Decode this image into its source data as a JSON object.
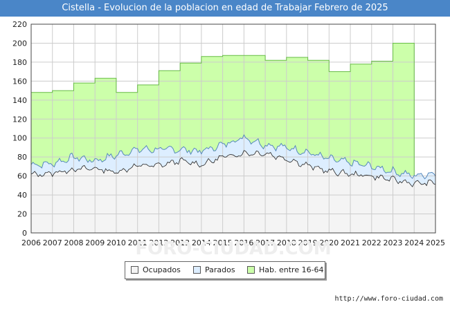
{
  "chart_data": {
    "type": "area",
    "title": "Cistella - Evolucion de la poblacion en edad de Trabajar Febrero de 2025",
    "xlabel": "",
    "ylabel": "",
    "xlim": [
      2006,
      2025
    ],
    "ylim": [
      0,
      220
    ],
    "x_ticks": [
      "2006",
      "2007",
      "2008",
      "2009",
      "2010",
      "2011",
      "2012",
      "2013",
      "2014",
      "2015",
      "2016",
      "2017",
      "2018",
      "2019",
      "2020",
      "2021",
      "2022",
      "2023",
      "2024",
      "2025"
    ],
    "y_ticks": [
      0,
      20,
      40,
      60,
      80,
      100,
      120,
      140,
      160,
      180,
      200,
      220
    ],
    "grid": true,
    "legend": [
      "Ocupados",
      "Parados",
      "Hab. entre 16-64"
    ],
    "series": [
      {
        "name": "Hab. entre 16-64",
        "color": "#ccffaa",
        "stroke": "#66bb44",
        "step_points": [
          [
            2006,
            148
          ],
          [
            2007,
            150
          ],
          [
            2008,
            158
          ],
          [
            2009,
            163
          ],
          [
            2010,
            148
          ],
          [
            2011,
            156
          ],
          [
            2012,
            171
          ],
          [
            2013,
            179
          ],
          [
            2014,
            186
          ],
          [
            2015,
            187
          ],
          [
            2016,
            187
          ],
          [
            2017,
            182
          ],
          [
            2018,
            185
          ],
          [
            2019,
            182
          ],
          [
            2020,
            170
          ],
          [
            2021,
            178
          ],
          [
            2022,
            181
          ],
          [
            2023,
            200
          ]
        ],
        "end_x": 2024.0
      },
      {
        "name": "Parados",
        "color": "#ddeeff",
        "stroke": "#5588bb",
        "annual_points": [
          [
            2006,
            72
          ],
          [
            2007,
            73
          ],
          [
            2008,
            80
          ],
          [
            2009,
            76
          ],
          [
            2010,
            82
          ],
          [
            2011,
            88
          ],
          [
            2012,
            88
          ],
          [
            2013,
            88
          ],
          [
            2014,
            86
          ],
          [
            2015,
            93
          ],
          [
            2016,
            101
          ],
          [
            2017,
            93
          ],
          [
            2018,
            90
          ],
          [
            2019,
            85
          ],
          [
            2020,
            78
          ],
          [
            2021,
            74
          ],
          [
            2022,
            70
          ],
          [
            2023,
            65
          ],
          [
            2024,
            60
          ],
          [
            2025,
            63
          ]
        ]
      },
      {
        "name": "Ocupados",
        "color": "#f4f4f4",
        "stroke": "#222222",
        "annual_points": [
          [
            2006,
            61
          ],
          [
            2007,
            63
          ],
          [
            2008,
            67
          ],
          [
            2009,
            68
          ],
          [
            2010,
            64
          ],
          [
            2011,
            71
          ],
          [
            2012,
            71
          ],
          [
            2013,
            76
          ],
          [
            2014,
            72
          ],
          [
            2015,
            80
          ],
          [
            2016,
            84
          ],
          [
            2017,
            84
          ],
          [
            2018,
            78
          ],
          [
            2019,
            71
          ],
          [
            2020,
            65
          ],
          [
            2021,
            62
          ],
          [
            2022,
            60
          ],
          [
            2023,
            56
          ],
          [
            2024,
            52
          ],
          [
            2025,
            53
          ]
        ]
      }
    ]
  },
  "footer": {
    "url": "http://www.foro-ciudad.com"
  },
  "watermark": "FORO-CIUDAD.COM"
}
